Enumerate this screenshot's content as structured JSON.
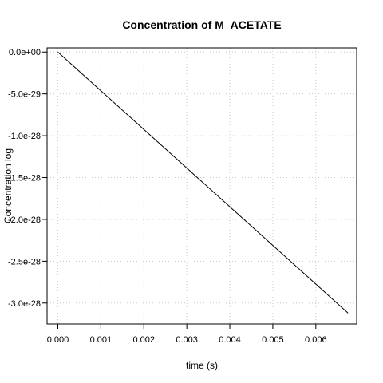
{
  "chart_data": {
    "type": "line",
    "title": "Concentration of M_ACETATE",
    "xlabel": "time (s)",
    "ylabel": "Concentration log",
    "xlim": [
      -0.00025,
      0.00695
    ],
    "ylim": [
      -3.25e-28,
      5e-30
    ],
    "xticks": [
      0,
      0.001,
      0.002,
      0.003,
      0.004,
      0.005,
      0.006
    ],
    "xtick_labels": [
      "0.000",
      "0.001",
      "0.002",
      "0.003",
      "0.004",
      "0.005",
      "0.006"
    ],
    "yticks": [
      0,
      -5e-29,
      -1e-28,
      -1.5e-28,
      -2e-28,
      -2.5e-28,
      -3e-28
    ],
    "ytick_labels": [
      "0.0e+00",
      "-5.0e-29",
      "-1.0e-28",
      "-1.5e-28",
      "-2.0e-28",
      "-2.5e-28",
      "-3.0e-28"
    ],
    "grid": true,
    "series": [
      {
        "x": [
          0,
          0.00675
        ],
        "y": [
          0,
          -3.12e-28
        ],
        "color": "#000000"
      }
    ]
  }
}
